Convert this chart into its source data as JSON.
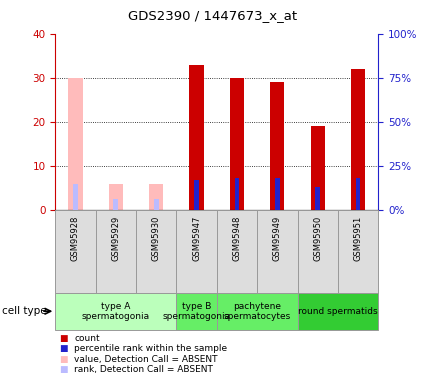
{
  "title": "GDS2390 / 1447673_x_at",
  "samples": [
    "GSM95928",
    "GSM95929",
    "GSM95930",
    "GSM95947",
    "GSM95948",
    "GSM95949",
    "GSM95950",
    "GSM95951"
  ],
  "count_values": [
    0,
    0,
    0,
    33,
    30,
    29,
    19,
    32
  ],
  "rank_values": [
    0,
    0,
    0,
    17,
    18,
    18,
    13,
    18
  ],
  "absent_count": [
    30,
    6,
    6,
    0,
    0,
    0,
    0,
    0
  ],
  "absent_rank": [
    15,
    6,
    6,
    0,
    0,
    0,
    0,
    0
  ],
  "is_absent": [
    true,
    true,
    true,
    false,
    false,
    false,
    false,
    false
  ],
  "ylim_left": [
    0,
    40
  ],
  "ylim_right": [
    0,
    100
  ],
  "yticks_left": [
    0,
    10,
    20,
    30,
    40
  ],
  "yticks_right": [
    0,
    25,
    50,
    75,
    100
  ],
  "ytick_labels_right": [
    "0%",
    "25%",
    "50%",
    "75%",
    "100%"
  ],
  "color_count": "#cc0000",
  "color_rank": "#2222cc",
  "color_absent_count": "#ffbbbb",
  "color_absent_rank": "#bbbbff",
  "bar_width": 0.35,
  "rank_bar_width": 0.12,
  "color_left_axis": "#cc0000",
  "color_right_axis": "#2222cc",
  "groups": [
    {
      "start": 0,
      "end": 2,
      "label": "type A\nspermatogonia",
      "color": "#bbffbb"
    },
    {
      "start": 3,
      "end": 3,
      "label": "type B\nspermatogonia",
      "color": "#66ee66"
    },
    {
      "start": 4,
      "end": 5,
      "label": "pachytene\nspermatocytes",
      "color": "#66ee66"
    },
    {
      "start": 6,
      "end": 7,
      "label": "round spermatids",
      "color": "#33cc33"
    }
  ],
  "legend_items": [
    {
      "color": "#cc0000",
      "label": "count"
    },
    {
      "color": "#2222cc",
      "label": "percentile rank within the sample"
    },
    {
      "color": "#ffbbbb",
      "label": "value, Detection Call = ABSENT"
    },
    {
      "color": "#bbbbff",
      "label": "rank, Detection Call = ABSENT"
    }
  ]
}
